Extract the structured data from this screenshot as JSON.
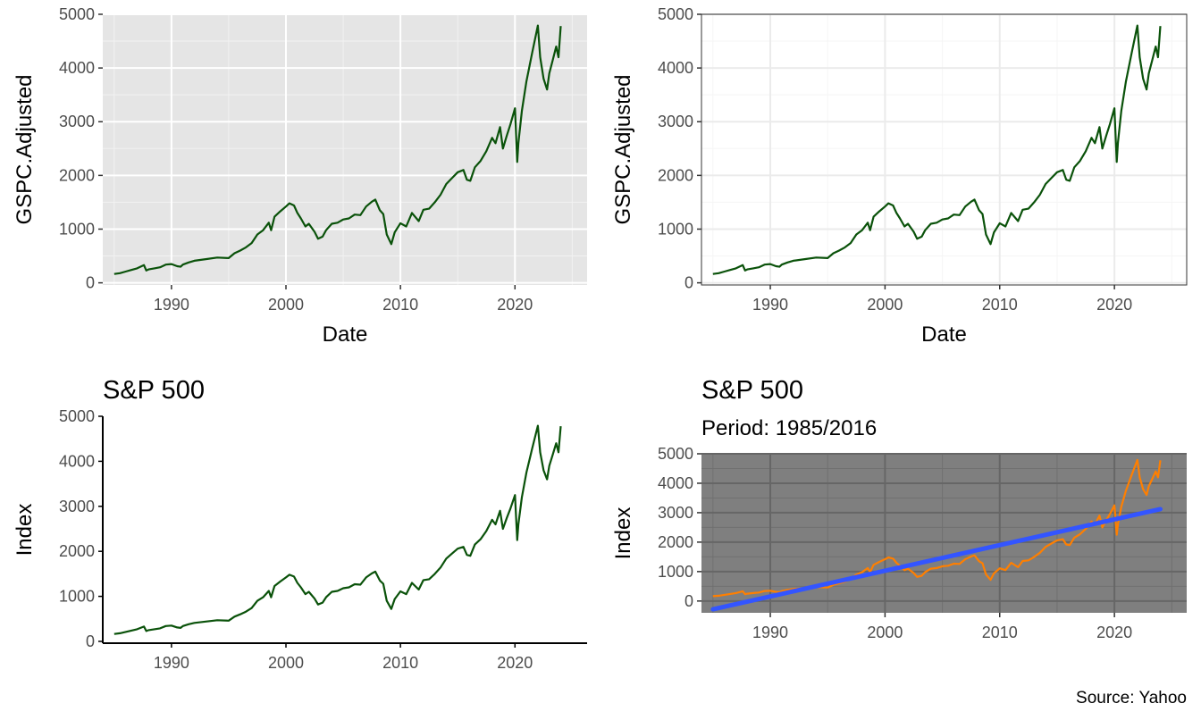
{
  "chart_data": [
    {
      "type": "line",
      "theme": "grey",
      "xlabel": "Date",
      "ylabel": "GSPC.Adjusted",
      "title": "",
      "subtitle": "",
      "xlim": [
        1984,
        2026.3
      ],
      "ylim": [
        -40,
        5000
      ],
      "xticks": [
        1990,
        2000,
        2010,
        2020
      ],
      "yticks": [
        0,
        1000,
        2000,
        3000,
        4000,
        5000
      ],
      "grid": true,
      "series": [
        {
          "color": "#0a520a"
        }
      ]
    },
    {
      "type": "line",
      "theme": "bw",
      "xlabel": "Date",
      "ylabel": "GSPC.Adjusted",
      "title": "",
      "subtitle": "",
      "xlim": [
        1984,
        2026.3
      ],
      "ylim": [
        -40,
        5000
      ],
      "xticks": [
        1990,
        2000,
        2010,
        2020
      ],
      "yticks": [
        0,
        1000,
        2000,
        3000,
        4000,
        5000
      ],
      "grid": true,
      "series": [
        {
          "color": "#0a520a"
        }
      ]
    },
    {
      "type": "line",
      "theme": "classic",
      "xlabel": "",
      "ylabel": "Index",
      "title": "S&P 500",
      "subtitle": "",
      "xlim": [
        1984,
        2026.3
      ],
      "ylim": [
        -40,
        5000
      ],
      "xticks": [
        1990,
        2000,
        2010,
        2020
      ],
      "yticks": [
        0,
        1000,
        2000,
        3000,
        4000,
        5000
      ],
      "grid": false,
      "series": [
        {
          "color": "#0a520a"
        }
      ]
    },
    {
      "type": "line",
      "theme": "dark",
      "xlabel": "",
      "ylabel": "Index",
      "title": "S&P 500",
      "subtitle": "Period: 1985/2016",
      "caption": "Source: Yahoo",
      "xlim": [
        1984,
        2026.3
      ],
      "ylim": [
        -400,
        5000
      ],
      "xticks": [
        1990,
        2000,
        2010,
        2020
      ],
      "yticks": [
        0,
        1000,
        2000,
        3000,
        4000,
        5000
      ],
      "grid": true,
      "series": [
        {
          "color": "#ff7f00"
        },
        {
          "color": "#3355ff",
          "trend": [
            [
              1985,
              -280
            ],
            [
              2024,
              3120
            ]
          ]
        }
      ]
    }
  ],
  "series_values": {
    "x": [
      1985.0,
      1985.5,
      1986.0,
      1986.5,
      1987.0,
      1987.6,
      1987.8,
      1988.0,
      1988.5,
      1989.0,
      1989.5,
      1990.0,
      1990.5,
      1990.8,
      1991.0,
      1991.5,
      1992.0,
      1993.0,
      1994.0,
      1995.0,
      1995.5,
      1996.0,
      1996.5,
      1997.0,
      1997.5,
      1998.0,
      1998.5,
      1998.7,
      1999.0,
      1999.5,
      2000.0,
      2000.3,
      2000.7,
      2001.0,
      2001.3,
      2001.7,
      2002.0,
      2002.5,
      2002.8,
      2003.2,
      2003.5,
      2004.0,
      2004.5,
      2005.0,
      2005.5,
      2006.0,
      2006.5,
      2007.0,
      2007.5,
      2007.8,
      2008.2,
      2008.5,
      2008.8,
      2009.2,
      2009.5,
      2010.0,
      2010.5,
      2011.0,
      2011.6,
      2012.0,
      2012.5,
      2013.0,
      2013.5,
      2014.0,
      2014.5,
      2015.0,
      2015.5,
      2015.8,
      2016.1,
      2016.5,
      2017.0,
      2017.5,
      2018.0,
      2018.3,
      2018.7,
      2018.95,
      2019.3,
      2019.6,
      2020.0,
      2020.2,
      2020.3,
      2020.6,
      2021.0,
      2021.5,
      2022.0,
      2022.2,
      2022.5,
      2022.8,
      2023.0,
      2023.3,
      2023.6,
      2023.8,
      2024.0
    ],
    "y": [
      165,
      180,
      210,
      240,
      270,
      330,
      230,
      250,
      270,
      290,
      340,
      350,
      310,
      300,
      340,
      380,
      410,
      440,
      470,
      460,
      550,
      600,
      660,
      740,
      900,
      980,
      1120,
      980,
      1230,
      1330,
      1420,
      1480,
      1440,
      1300,
      1200,
      1050,
      1100,
      950,
      820,
      860,
      980,
      1100,
      1120,
      1180,
      1200,
      1270,
      1260,
      1420,
      1510,
      1550,
      1350,
      1280,
      900,
      720,
      940,
      1110,
      1050,
      1300,
      1150,
      1360,
      1380,
      1500,
      1640,
      1840,
      1950,
      2060,
      2100,
      1920,
      1900,
      2150,
      2270,
      2450,
      2700,
      2600,
      2900,
      2500,
      2750,
      2950,
      3250,
      2250,
      2600,
      3200,
      3750,
      4280,
      4790,
      4200,
      3800,
      3600,
      3900,
      4150,
      4400,
      4200,
      4780
    ]
  },
  "caption": "Source: Yahoo"
}
